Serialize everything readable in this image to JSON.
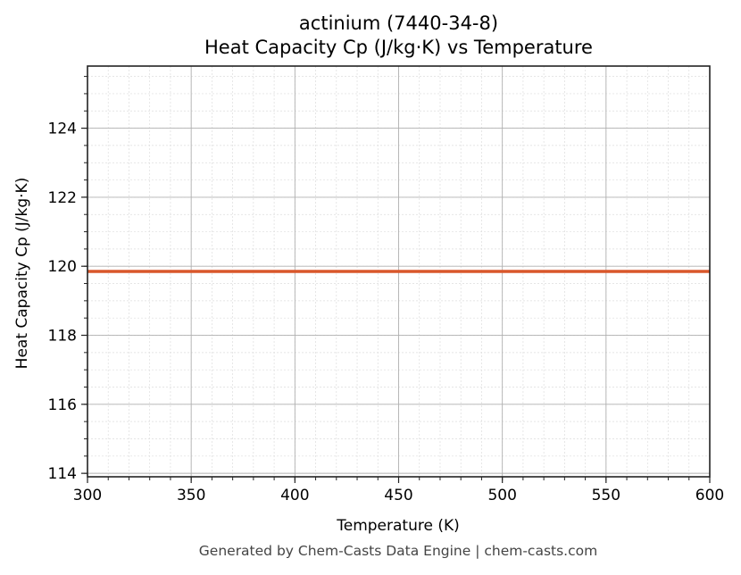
{
  "chart_data": {
    "type": "line",
    "title": "actinium (7440-34-8)",
    "subtitle": "Heat Capacity Cp (J/kg·K) vs Temperature",
    "xlabel": "Temperature (K)",
    "ylabel": "Heat Capacity Cp (J/kg·K)",
    "xlim": [
      300,
      600
    ],
    "ylim": [
      113.9,
      125.8
    ],
    "x_ticks": [
      300,
      350,
      400,
      450,
      500,
      550,
      600
    ],
    "y_ticks": [
      114,
      116,
      118,
      120,
      122,
      124
    ],
    "grid": true,
    "legend": null,
    "series": [
      {
        "name": "Cp",
        "color": "#d9572b",
        "x": [
          300,
          350,
          400,
          450,
          500,
          550,
          600
        ],
        "values": [
          119.85,
          119.85,
          119.85,
          119.85,
          119.85,
          119.85,
          119.85
        ]
      }
    ],
    "footer": "Generated by Chem-Casts Data Engine | chem-casts.com"
  }
}
